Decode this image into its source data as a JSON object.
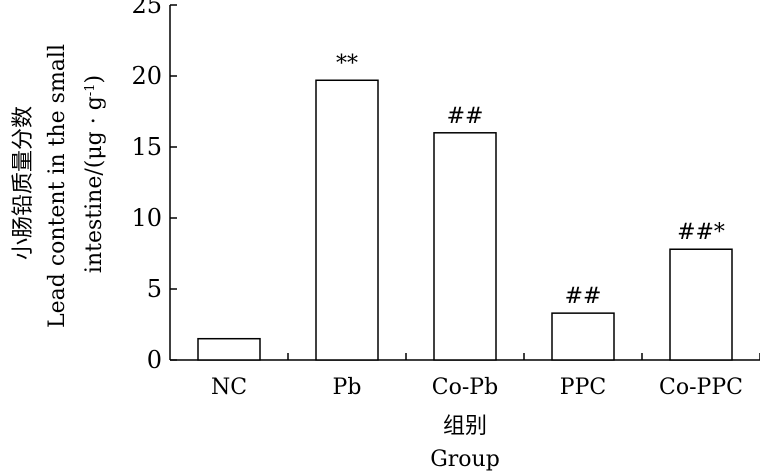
{
  "chart_data": {
    "type": "bar",
    "categories": [
      "NC",
      "Pb",
      "Co-Pb",
      "PPC",
      "Co-PPC"
    ],
    "values": [
      1.5,
      19.7,
      16.0,
      3.3,
      7.8
    ],
    "annotations": [
      "",
      "**",
      "##",
      "##",
      "##*"
    ],
    "ylim": [
      0,
      25
    ],
    "yticks": [
      0,
      5,
      10,
      15,
      20,
      25
    ],
    "ylabel_zh": "小肠铅质量分数",
    "ylabel_line1": "Lead content in the small",
    "ylabel_line2_main": "intestine/(μg · g",
    "ylabel_line2_sup": "-1",
    "ylabel_line2_end": ")",
    "xlabel_zh": "组别",
    "xlabel_en": "Group",
    "grid": false
  }
}
